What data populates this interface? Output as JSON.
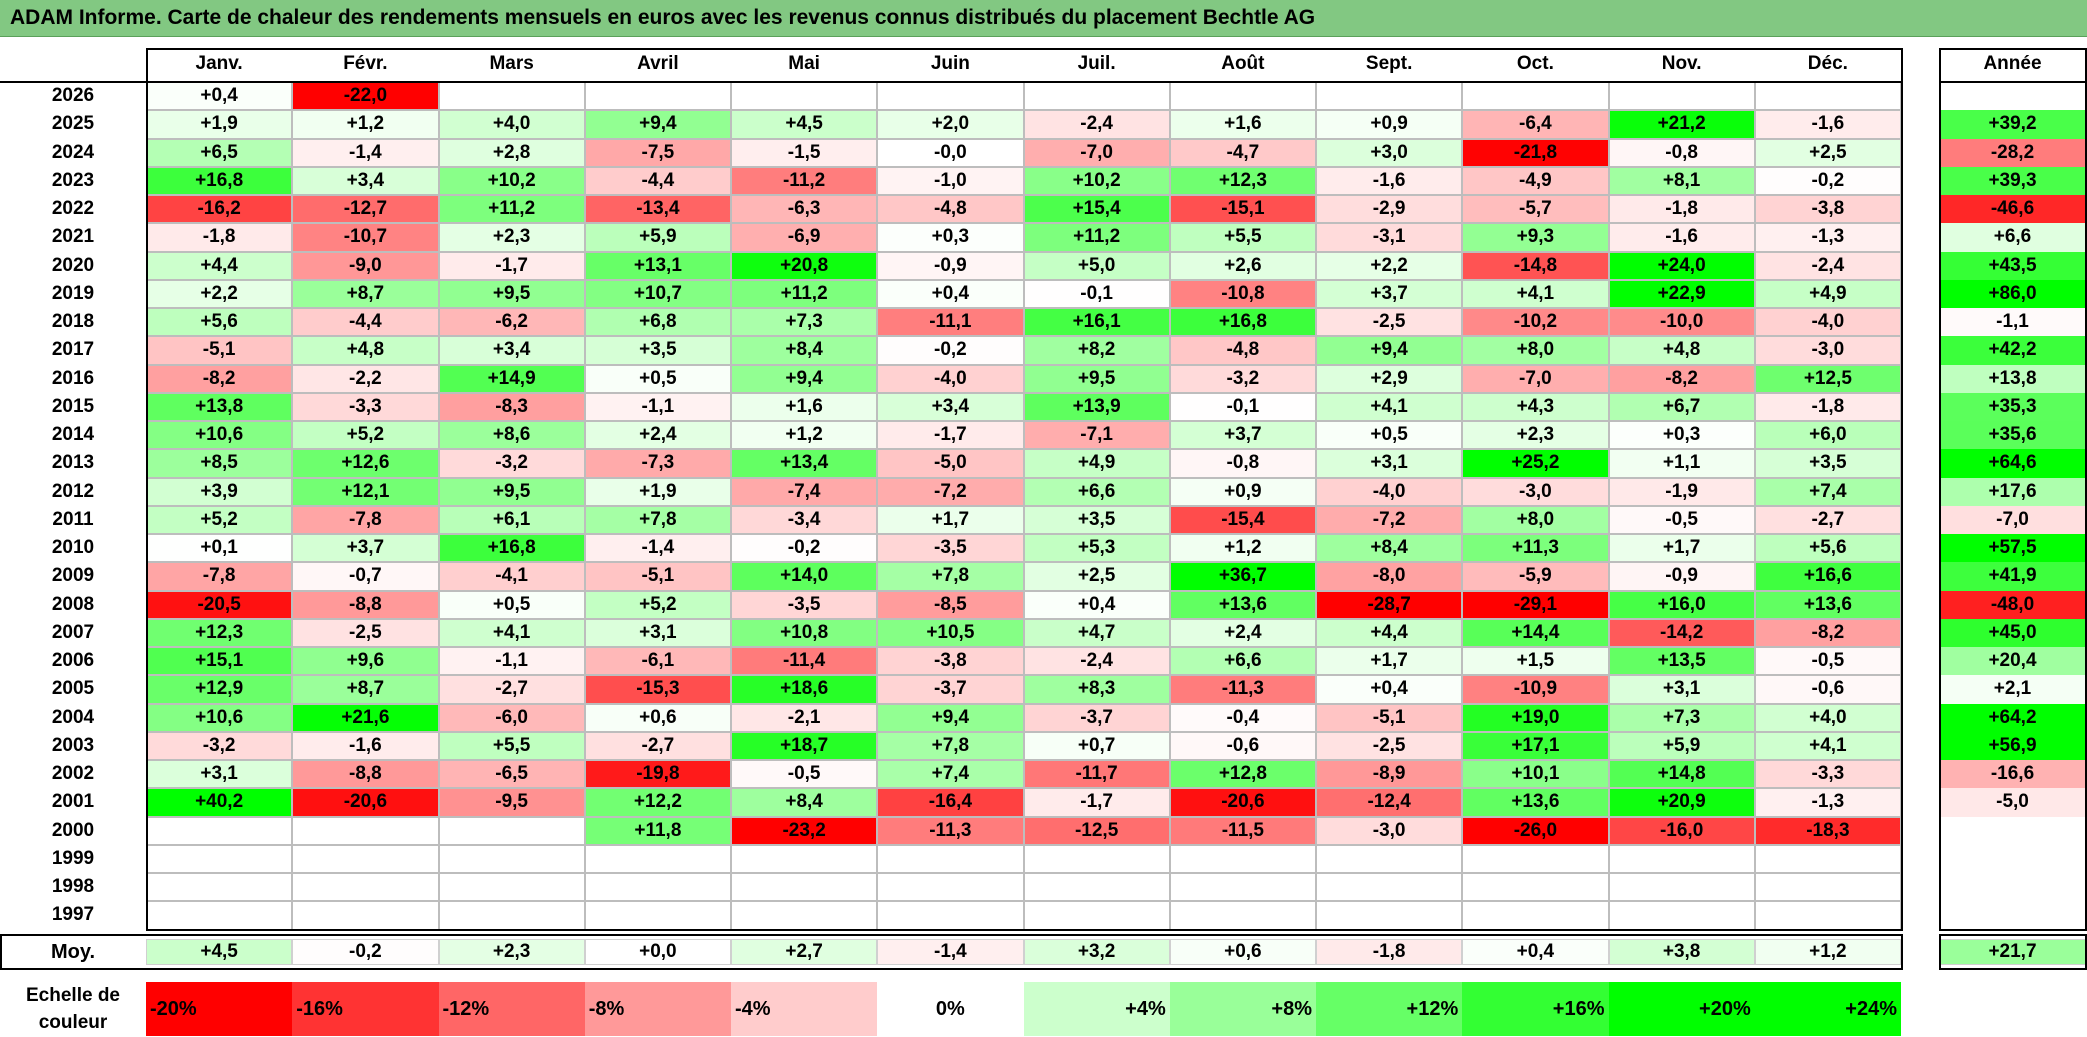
{
  "title": "ADAM Informe. Carte de chaleur des rendements mensuels en euros avec les revenus connus distribués du placement Bechtle AG",
  "months": [
    "Janv.",
    "Févr.",
    "Mars",
    "Avril",
    "Mai",
    "Juin",
    "Juil.",
    "Août",
    "Sept.",
    "Oct.",
    "Nov.",
    "Déc."
  ],
  "annual_header": "Année",
  "average_label": "Moy.",
  "scale_label_line1": "Echelle de",
  "scale_label_line2": "couleur",
  "scale": [
    "-20%",
    "-16%",
    "-12%",
    "-8%",
    "-4%",
    "0%",
    "+4%",
    "+8%",
    "+12%",
    "+16%",
    "+20%",
    "+24%"
  ],
  "colors": {
    "strong_red": "#ff0000",
    "strong_green": "#00ff00",
    "neutral": "#ffffff",
    "title_bg": "#82c882"
  },
  "chart_data": {
    "type": "heatmap",
    "title": "ADAM Informe. Carte de chaleur des rendements mensuels en euros avec les revenus connus distribués du placement Bechtle AG",
    "columns": [
      "Janv.",
      "Févr.",
      "Mars",
      "Avril",
      "Mai",
      "Juin",
      "Juil.",
      "Août",
      "Sept.",
      "Oct.",
      "Nov.",
      "Déc.",
      "Année"
    ],
    "rows": [
      {
        "year": "2026",
        "values": [
          "+0,4",
          "-22,0",
          "",
          "",
          "",
          "",
          "",
          "",
          "",
          "",
          "",
          "",
          ""
        ]
      },
      {
        "year": "2025",
        "values": [
          "+1,9",
          "+1,2",
          "+4,0",
          "+9,4",
          "+4,5",
          "+2,0",
          "-2,4",
          "+1,6",
          "+0,9",
          "-6,4",
          "+21,2",
          "-1,6",
          "+39,2"
        ]
      },
      {
        "year": "2024",
        "values": [
          "+6,5",
          "-1,4",
          "+2,8",
          "-7,5",
          "-1,5",
          "-0,0",
          "-7,0",
          "-4,7",
          "+3,0",
          "-21,8",
          "-0,8",
          "+2,5",
          "-28,2"
        ]
      },
      {
        "year": "2023",
        "values": [
          "+16,8",
          "+3,4",
          "+10,2",
          "-4,4",
          "-11,2",
          "-1,0",
          "+10,2",
          "+12,3",
          "-1,6",
          "-4,9",
          "+8,1",
          "-0,2",
          "+39,3"
        ]
      },
      {
        "year": "2022",
        "values": [
          "-16,2",
          "-12,7",
          "+11,2",
          "-13,4",
          "-6,3",
          "-4,8",
          "+15,4",
          "-15,1",
          "-2,9",
          "-5,7",
          "-1,8",
          "-3,8",
          "-46,6"
        ]
      },
      {
        "year": "2021",
        "values": [
          "-1,8",
          "-10,7",
          "+2,3",
          "+5,9",
          "-6,9",
          "+0,3",
          "+11,2",
          "+5,5",
          "-3,1",
          "+9,3",
          "-1,6",
          "-1,3",
          "+6,6"
        ]
      },
      {
        "year": "2020",
        "values": [
          "+4,4",
          "-9,0",
          "-1,7",
          "+13,1",
          "+20,8",
          "-0,9",
          "+5,0",
          "+2,6",
          "+2,2",
          "-14,8",
          "+24,0",
          "-2,4",
          "+43,5"
        ]
      },
      {
        "year": "2019",
        "values": [
          "+2,2",
          "+8,7",
          "+9,5",
          "+10,7",
          "+11,2",
          "+0,4",
          "-0,1",
          "-10,8",
          "+3,7",
          "+4,1",
          "+22,9",
          "+4,9",
          "+86,0"
        ]
      },
      {
        "year": "2018",
        "values": [
          "+5,6",
          "-4,4",
          "-6,2",
          "+6,8",
          "+7,3",
          "-11,1",
          "+16,1",
          "+16,8",
          "-2,5",
          "-10,2",
          "-10,0",
          "-4,0",
          "-1,1"
        ]
      },
      {
        "year": "2017",
        "values": [
          "-5,1",
          "+4,8",
          "+3,4",
          "+3,5",
          "+8,4",
          "-0,2",
          "+8,2",
          "-4,8",
          "+9,4",
          "+8,0",
          "+4,8",
          "-3,0",
          "+42,2"
        ]
      },
      {
        "year": "2016",
        "values": [
          "-8,2",
          "-2,2",
          "+14,9",
          "+0,5",
          "+9,4",
          "-4,0",
          "+9,5",
          "-3,2",
          "+2,9",
          "-7,0",
          "-8,2",
          "+12,5",
          "+13,8"
        ]
      },
      {
        "year": "2015",
        "values": [
          "+13,8",
          "-3,3",
          "-8,3",
          "-1,1",
          "+1,6",
          "+3,4",
          "+13,9",
          "-0,1",
          "+4,1",
          "+4,3",
          "+6,7",
          "-1,8",
          "+35,3"
        ]
      },
      {
        "year": "2014",
        "values": [
          "+10,6",
          "+5,2",
          "+8,6",
          "+2,4",
          "+1,2",
          "-1,7",
          "-7,1",
          "+3,7",
          "+0,5",
          "+2,3",
          "+0,3",
          "+6,0",
          "+35,6"
        ]
      },
      {
        "year": "2013",
        "values": [
          "+8,5",
          "+12,6",
          "-3,2",
          "-7,3",
          "+13,4",
          "-5,0",
          "+4,9",
          "-0,8",
          "+3,1",
          "+25,2",
          "+1,1",
          "+3,5",
          "+64,6"
        ]
      },
      {
        "year": "2012",
        "values": [
          "+3,9",
          "+12,1",
          "+9,5",
          "+1,9",
          "-7,4",
          "-7,2",
          "+6,6",
          "+0,9",
          "-4,0",
          "-3,0",
          "-1,9",
          "+7,4",
          "+17,6"
        ]
      },
      {
        "year": "2011",
        "values": [
          "+5,2",
          "-7,8",
          "+6,1",
          "+7,8",
          "-3,4",
          "+1,7",
          "+3,5",
          "-15,4",
          "-7,2",
          "+8,0",
          "-0,5",
          "-2,7",
          "-7,0"
        ]
      },
      {
        "year": "2010",
        "values": [
          "+0,1",
          "+3,7",
          "+16,8",
          "-1,4",
          "-0,2",
          "-3,5",
          "+5,3",
          "+1,2",
          "+8,4",
          "+11,3",
          "+1,7",
          "+5,6",
          "+57,5"
        ]
      },
      {
        "year": "2009",
        "values": [
          "-7,8",
          "-0,7",
          "-4,1",
          "-5,1",
          "+14,0",
          "+7,8",
          "+2,5",
          "+36,7",
          "-8,0",
          "-5,9",
          "-0,9",
          "+16,6",
          "+41,9"
        ]
      },
      {
        "year": "2008",
        "values": [
          "-20,5",
          "-8,8",
          "+0,5",
          "+5,2",
          "-3,5",
          "-8,5",
          "+0,4",
          "+13,6",
          "-28,7",
          "-29,1",
          "+16,0",
          "+13,6",
          "-48,0"
        ]
      },
      {
        "year": "2007",
        "values": [
          "+12,3",
          "-2,5",
          "+4,1",
          "+3,1",
          "+10,8",
          "+10,5",
          "+4,7",
          "+2,4",
          "+4,4",
          "+14,4",
          "-14,2",
          "-8,2",
          "+45,0"
        ]
      },
      {
        "year": "2006",
        "values": [
          "+15,1",
          "+9,6",
          "-1,1",
          "-6,1",
          "-11,4",
          "-3,8",
          "-2,4",
          "+6,6",
          "+1,7",
          "+1,5",
          "+13,5",
          "-0,5",
          "+20,4"
        ]
      },
      {
        "year": "2005",
        "values": [
          "+12,9",
          "+8,7",
          "-2,7",
          "-15,3",
          "+18,6",
          "-3,7",
          "+8,3",
          "-11,3",
          "+0,4",
          "-10,9",
          "+3,1",
          "-0,6",
          "+2,1"
        ]
      },
      {
        "year": "2004",
        "values": [
          "+10,6",
          "+21,6",
          "-6,0",
          "+0,6",
          "-2,1",
          "+9,4",
          "-3,7",
          "-0,4",
          "-5,1",
          "+19,0",
          "+7,3",
          "+4,0",
          "+64,2"
        ]
      },
      {
        "year": "2003",
        "values": [
          "-3,2",
          "-1,6",
          "+5,5",
          "-2,7",
          "+18,7",
          "+7,8",
          "+0,7",
          "-0,6",
          "-2,5",
          "+17,1",
          "+5,9",
          "+4,1",
          "+56,9"
        ]
      },
      {
        "year": "2002",
        "values": [
          "+3,1",
          "-8,8",
          "-6,5",
          "-19,8",
          "-0,5",
          "+7,4",
          "-11,7",
          "+12,8",
          "-8,9",
          "+10,1",
          "+14,8",
          "-3,3",
          "-16,6"
        ]
      },
      {
        "year": "2001",
        "values": [
          "+40,2",
          "-20,6",
          "-9,5",
          "+12,2",
          "+8,4",
          "-16,4",
          "-1,7",
          "-20,6",
          "-12,4",
          "+13,6",
          "+20,9",
          "-1,3",
          "-5,0"
        ]
      },
      {
        "year": "2000",
        "values": [
          "",
          "",
          "",
          "+11,8",
          "-23,2",
          "-11,3",
          "-12,5",
          "-11,5",
          "-3,0",
          "-26,0",
          "-16,0",
          "-18,3",
          ""
        ]
      },
      {
        "year": "1999",
        "values": [
          "",
          "",
          "",
          "",
          "",
          "",
          "",
          "",
          "",
          "",
          "",
          "",
          ""
        ]
      },
      {
        "year": "1998",
        "values": [
          "",
          "",
          "",
          "",
          "",
          "",
          "",
          "",
          "",
          "",
          "",
          "",
          ""
        ]
      },
      {
        "year": "1997",
        "values": [
          "",
          "",
          "",
          "",
          "",
          "",
          "",
          "",
          "",
          "",
          "",
          "",
          ""
        ]
      }
    ],
    "average": [
      "+4,5",
      "-0,2",
      "+2,3",
      "+0,0",
      "+2,7",
      "-1,4",
      "+3,2",
      "+0,6",
      "-1,8",
      "+0,4",
      "+3,8",
      "+1,2",
      "+21,7"
    ]
  }
}
